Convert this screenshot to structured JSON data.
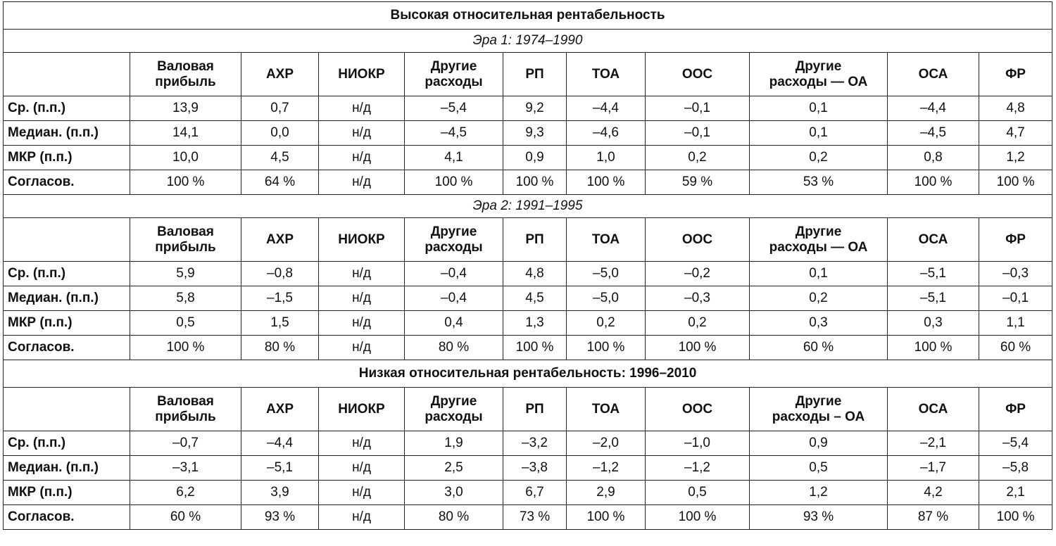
{
  "title": "Высокая относительная рентабельность",
  "columns": [
    [
      "Валовая",
      "прибыль"
    ],
    [
      "АХР"
    ],
    [
      "НИОКР"
    ],
    [
      "Другие",
      "расходы"
    ],
    [
      "РП"
    ],
    [
      "ТОА"
    ],
    [
      "ООС"
    ],
    [
      "Другие",
      "расходы — ОА"
    ],
    [
      "ОСА"
    ],
    [
      "ФР"
    ]
  ],
  "columns_alt": [
    [
      "Валовая",
      "прибыль"
    ],
    [
      "АХР"
    ],
    [
      "НИОКР"
    ],
    [
      "Другие",
      "расходы"
    ],
    [
      "РП"
    ],
    [
      "ТОА"
    ],
    [
      "ООС"
    ],
    [
      "Другие",
      "расходы – ОА"
    ],
    [
      "ОСА"
    ],
    [
      "ФР"
    ]
  ],
  "sections": [
    {
      "heading": "Эра 1: 1974–1990",
      "style": "era",
      "header_set": "columns",
      "rows": [
        {
          "label": "Ср. (п.п.)",
          "values": [
            "13,9",
            "0,7",
            "н/д",
            "–5,4",
            "9,2",
            "–4,4",
            "–0,1",
            "0,1",
            "–4,4",
            "4,8"
          ]
        },
        {
          "label": "Медиан. (п.п.)",
          "values": [
            "14,1",
            "0,0",
            "н/д",
            "–4,5",
            "9,3",
            "–4,6",
            "–0,1",
            "0,1",
            "–4,5",
            "4,7"
          ]
        },
        {
          "label": "МКР (п.п.)",
          "values": [
            "10,0",
            "4,5",
            "н/д",
            "4,1",
            "0,9",
            "1,0",
            "0,2",
            "0,2",
            "0,8",
            "1,2"
          ]
        },
        {
          "label": "Согласов.",
          "values": [
            "100 %",
            "64 %",
            "н/д",
            "100 %",
            "100 %",
            "100 %",
            "59 %",
            "53 %",
            "100 %",
            "100 %"
          ]
        }
      ]
    },
    {
      "heading": "Эра 2: 1991–1995",
      "style": "era",
      "header_set": "columns",
      "rows": [
        {
          "label": "Ср. (п.п.)",
          "values": [
            "5,9",
            "–0,8",
            "н/д",
            "–0,4",
            "4,8",
            "–5,0",
            "–0,2",
            "0,1",
            "–5,1",
            "–0,3"
          ]
        },
        {
          "label": "Медиан. (п.п.)",
          "values": [
            "5,8",
            "–1,5",
            "н/д",
            "–0,4",
            "4,5",
            "–5,0",
            "–0,3",
            "0,2",
            "–5,1",
            "–0,1"
          ]
        },
        {
          "label": "МКР (п.п.)",
          "values": [
            "0,5",
            "1,5",
            "н/д",
            "0,4",
            "1,3",
            "0,2",
            "0,2",
            "0,3",
            "0,3",
            "1,1"
          ]
        },
        {
          "label": "Согласов.",
          "values": [
            "100 %",
            "80 %",
            "н/д",
            "80 %",
            "100 %",
            "100 %",
            "100 %",
            "60 %",
            "100 %",
            "60 %"
          ]
        }
      ]
    },
    {
      "heading": "Низкая относительная рентабельность: 1996–2010",
      "style": "title",
      "header_set": "columns_alt",
      "rows": [
        {
          "label": "Ср. (п.п.)",
          "values": [
            "–0,7",
            "–4,4",
            "н/д",
            "1,9",
            "–3,2",
            "–2,0",
            "–1,0",
            "0,9",
            "–2,1",
            "–5,4"
          ]
        },
        {
          "label": "Медиан. (п.п.)",
          "values": [
            "–3,1",
            "–5,1",
            "н/д",
            "2,5",
            "–3,8",
            "–1,2",
            "–1,2",
            "0,5",
            "–1,7",
            "–5,8"
          ]
        },
        {
          "label": "МКР (п.п.)",
          "values": [
            "6,2",
            "3,9",
            "н/д",
            "3,0",
            "6,7",
            "2,9",
            "0,5",
            "1,2",
            "4,2",
            "2,1"
          ]
        },
        {
          "label": "Согласов.",
          "values": [
            "60 %",
            "93 %",
            "н/д",
            "80 %",
            "73 %",
            "100 %",
            "100 %",
            "93 %",
            "87 %",
            "100 %"
          ]
        }
      ]
    }
  ]
}
